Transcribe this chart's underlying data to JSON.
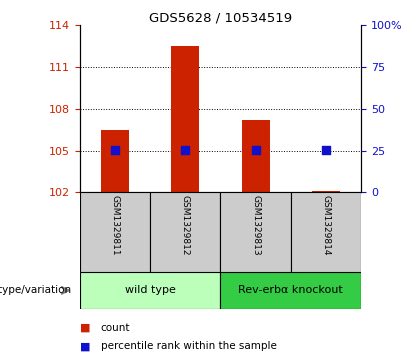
{
  "title": "GDS5628 / 10534519",
  "samples": [
    "GSM1329811",
    "GSM1329812",
    "GSM1329813",
    "GSM1329814"
  ],
  "count_values": [
    106.5,
    112.5,
    107.2,
    102.1
  ],
  "percentile_values": [
    25.5,
    25.5,
    25.5,
    25.5
  ],
  "left_ylim": [
    102,
    114
  ],
  "left_yticks": [
    102,
    105,
    108,
    111,
    114
  ],
  "right_ylim": [
    0,
    100
  ],
  "right_yticks": [
    0,
    25,
    50,
    75,
    100
  ],
  "right_yticklabels": [
    "0",
    "25",
    "50",
    "75",
    "100%"
  ],
  "hlines": [
    105,
    108,
    111
  ],
  "bar_color": "#cc2200",
  "dot_color": "#1111cc",
  "groups": [
    {
      "label": "wild type",
      "samples": [
        0,
        1
      ],
      "color": "#bbffbb"
    },
    {
      "label": "Rev-erbα knockout",
      "samples": [
        2,
        3
      ],
      "color": "#33cc44"
    }
  ],
  "group_label": "genotype/variation",
  "legend_items": [
    {
      "color": "#cc2200",
      "label": "count"
    },
    {
      "color": "#1111cc",
      "label": "percentile rank within the sample"
    }
  ],
  "left_tick_color": "#cc2200",
  "right_tick_color": "#1111cc",
  "bar_width": 0.4,
  "dot_size": 30,
  "sample_cell_color": "#cccccc"
}
